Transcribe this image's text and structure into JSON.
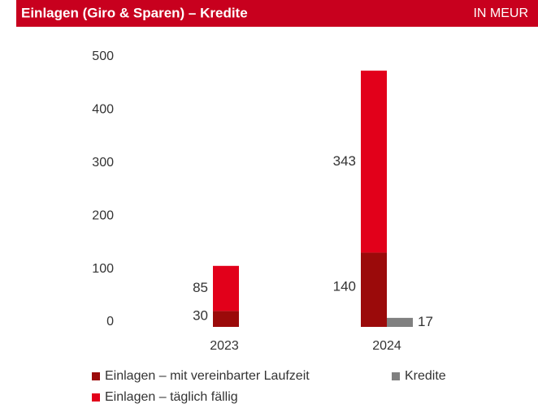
{
  "chart_data": {
    "type": "bar",
    "title": "Einlagen (Giro & Sparen) – Kredite",
    "unit": "IN MEUR",
    "categories": [
      "2023",
      "2024"
    ],
    "series": [
      {
        "name": "Einlagen – mit vereinbarter Laufzeit",
        "color": "#9b0a0a",
        "values": [
          30,
          140
        ],
        "stack": true
      },
      {
        "name": "Einlagen – täglich fällig",
        "color": "#e2001a",
        "values": [
          85,
          343
        ],
        "stack": true
      },
      {
        "name": "Kredite",
        "color": "#808080",
        "values": [
          null,
          17
        ]
      }
    ],
    "ylim": [
      0,
      500
    ],
    "yticks": [
      0,
      100,
      200,
      300,
      400,
      500
    ],
    "grid": false
  }
}
